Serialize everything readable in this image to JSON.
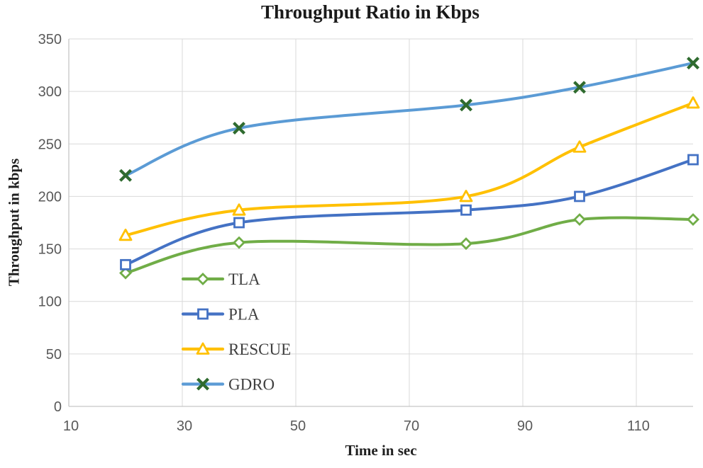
{
  "chart_data": {
    "type": "line",
    "title": "Throughput Ratio in Kbps",
    "xlabel": "Time in sec",
    "ylabel": "Throughput in kbps",
    "x": [
      20,
      40,
      80,
      100,
      120
    ],
    "xlim": [
      10,
      120
    ],
    "ylim": [
      0,
      350
    ],
    "xticks": [
      10,
      30,
      50,
      70,
      90,
      110
    ],
    "yticks": [
      0,
      50,
      100,
      150,
      200,
      250,
      300,
      350
    ],
    "grid": true,
    "grid_color": "#d9d9d9",
    "axis_line_color": "#c6c6c6",
    "tick_label_color": "#595959",
    "smooth_lines": true,
    "legend_position": "inside-bottom-left",
    "series": [
      {
        "name": "TLA",
        "color": "#70AD47",
        "marker": "diamond",
        "marker_color": "#70AD47",
        "values": [
          127,
          156,
          155,
          178,
          178
        ]
      },
      {
        "name": "PLA",
        "color": "#4472C4",
        "marker": "square",
        "marker_color": "#4472C4",
        "values": [
          135,
          175,
          187,
          200,
          235
        ]
      },
      {
        "name": "RESCUE",
        "color": "#FFC000",
        "marker": "triangle",
        "marker_color": "#FFC000",
        "values": [
          163,
          187,
          200,
          247,
          289
        ]
      },
      {
        "name": "GDRO",
        "color": "#5B9BD5",
        "marker": "x",
        "marker_color": "#2F6B2F",
        "values": [
          220,
          265,
          287,
          304,
          327
        ]
      }
    ]
  }
}
